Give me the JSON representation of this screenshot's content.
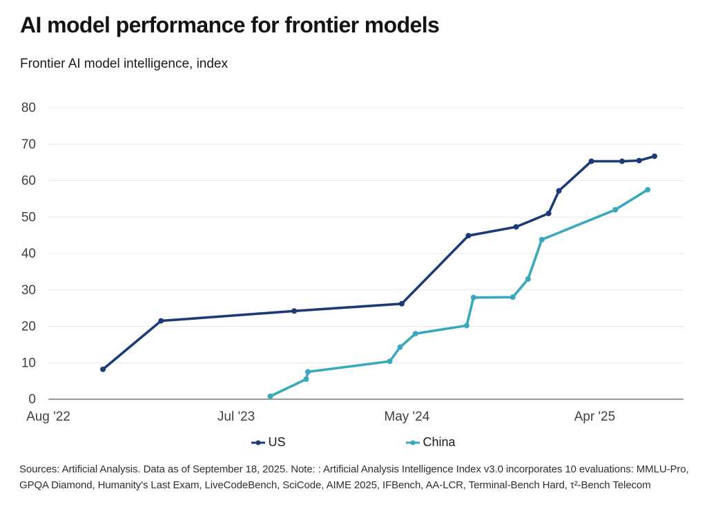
{
  "header": {
    "title": "AI model performance for frontier models",
    "subtitle": "Frontier AI model intelligence, index"
  },
  "chart_data": {
    "type": "line",
    "title": "AI model performance for frontier models",
    "subtitle": "Frontier AI model intelligence, index",
    "ylabel": "Frontier AI model intelligence, index",
    "ylim": [
      0,
      80
    ],
    "y_ticks": [
      0,
      10,
      20,
      30,
      40,
      50,
      60,
      70,
      80
    ],
    "grid": "horizontal",
    "legend_position": "bottom",
    "x_axis": {
      "unit": "months since Aug 2022",
      "range": [
        0,
        37.2
      ],
      "ticks": [
        {
          "m": 0,
          "label": "Aug '22"
        },
        {
          "m": 11,
          "label": "Jul '23"
        },
        {
          "m": 21,
          "label": "May '24"
        },
        {
          "m": 32,
          "label": "Apr '25"
        }
      ]
    },
    "series": [
      {
        "name": "US",
        "color": "#1b3a76",
        "points": [
          [
            3.2,
            8.2
          ],
          [
            6.6,
            21.5
          ],
          [
            14.4,
            24.2
          ],
          [
            20.7,
            26.2
          ],
          [
            24.6,
            44.9
          ],
          [
            27.4,
            47.3
          ],
          [
            29.3,
            51.0
          ],
          [
            29.9,
            57.2
          ],
          [
            31.8,
            65.3
          ],
          [
            33.6,
            65.3
          ],
          [
            34.6,
            65.5
          ],
          [
            35.5,
            66.7
          ]
        ]
      },
      {
        "name": "China",
        "color": "#38a8bc",
        "points": [
          [
            13.0,
            0.8
          ],
          [
            15.1,
            5.5
          ],
          [
            15.2,
            7.5
          ],
          [
            20.0,
            10.4
          ],
          [
            20.6,
            14.3
          ],
          [
            21.5,
            18.0
          ],
          [
            24.5,
            20.2
          ],
          [
            24.9,
            27.9
          ],
          [
            27.2,
            28.0
          ],
          [
            28.1,
            33.0
          ],
          [
            28.9,
            43.8
          ],
          [
            33.2,
            52.0
          ],
          [
            35.1,
            57.5
          ]
        ]
      }
    ]
  },
  "footer": {
    "text": "Sources: Artificial Analysis. Data as of September 18, 2025. Note: : Artificial Analysis Intelligence Index v3.0 incorporates 10 evaluations: MMLU-Pro, GPQA Diamond, Humanity's Last Exam, LiveCodeBench, SciCode, AIME 2025, IFBench, AA-LCR, Terminal-Bench Hard, τ²-Bench Telecom"
  }
}
